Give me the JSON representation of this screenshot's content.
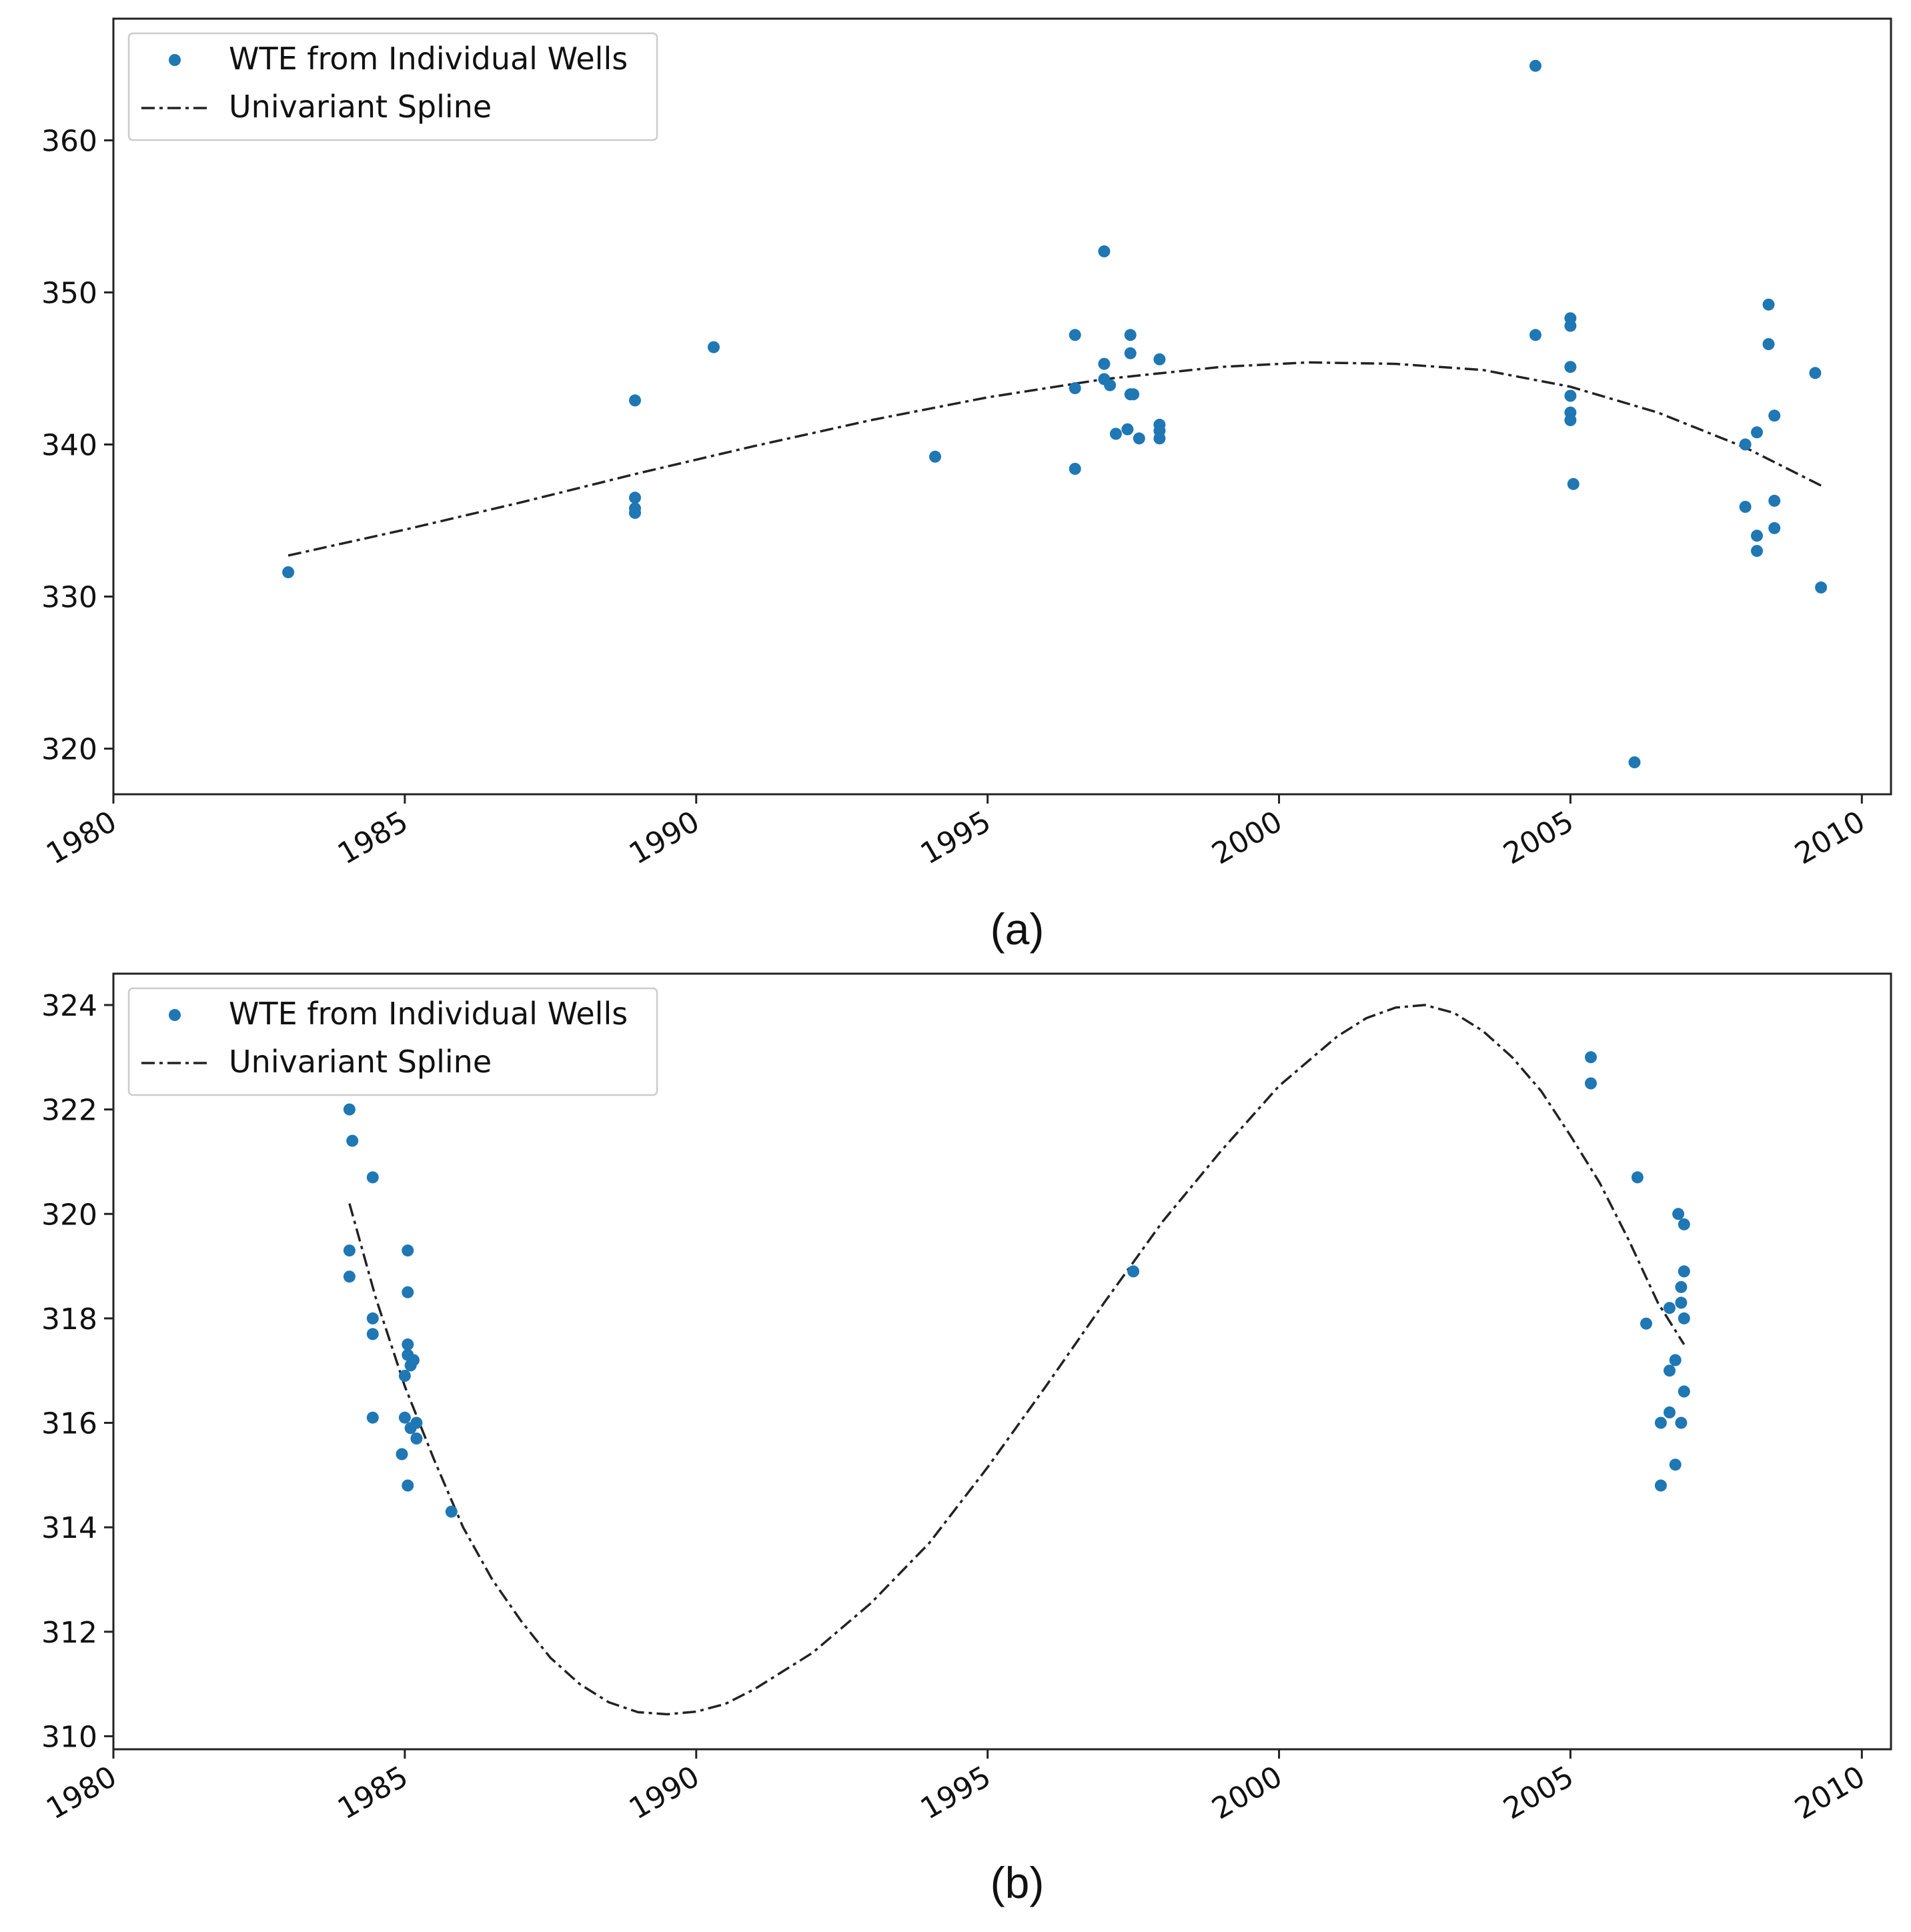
{
  "chart_data": [
    {
      "type": "scatter",
      "panel_label": "(a)",
      "xlim": [
        1980,
        2010.5
      ],
      "ylim": [
        317,
        368
      ],
      "xticks": [
        1980,
        1985,
        1990,
        1995,
        2000,
        2005,
        2010
      ],
      "yticks": [
        320,
        330,
        340,
        350,
        360
      ],
      "xtick_labels": [
        "1980",
        "1985",
        "1990",
        "1995",
        "2000",
        "2005",
        "2010"
      ],
      "ytick_labels": [
        "320",
        "330",
        "340",
        "350",
        "360"
      ],
      "legend": {
        "placement": "upper-left",
        "entries": [
          "WTE from Individual Wells",
          "Univariant Spline"
        ]
      },
      "series": [
        {
          "name": "WTE from Individual Wells",
          "kind": "scatter",
          "color": "#1f77b4",
          "points": [
            [
              1983.0,
              331.6
            ],
            [
              1988.95,
              342.9
            ],
            [
              1988.95,
              336.5
            ],
            [
              1988.95,
              335.8
            ],
            [
              1988.95,
              335.5
            ],
            [
              1990.3,
              346.4
            ],
            [
              1994.1,
              339.2
            ],
            [
              1996.5,
              347.2
            ],
            [
              1996.5,
              343.7
            ],
            [
              1996.5,
              338.4
            ],
            [
              1997.0,
              352.7
            ],
            [
              1997.0,
              345.3
            ],
            [
              1997.0,
              344.3
            ],
            [
              1997.1,
              343.9
            ],
            [
              1997.2,
              340.7
            ],
            [
              1997.4,
              341.0
            ],
            [
              1997.45,
              343.3
            ],
            [
              1997.45,
              347.2
            ],
            [
              1997.45,
              346.0
            ],
            [
              1997.5,
              343.3
            ],
            [
              1997.6,
              340.4
            ],
            [
              1997.95,
              345.6
            ],
            [
              1997.95,
              341.3
            ],
            [
              1997.95,
              340.9
            ],
            [
              1997.95,
              340.4
            ],
            [
              2004.4,
              364.9
            ],
            [
              2004.4,
              347.2
            ],
            [
              2005.0,
              348.3
            ],
            [
              2005.0,
              347.8
            ],
            [
              2005.0,
              345.1
            ],
            [
              2005.0,
              343.2
            ],
            [
              2005.0,
              342.1
            ],
            [
              2005.0,
              341.6
            ],
            [
              2005.05,
              337.4
            ],
            [
              2006.1,
              319.1
            ],
            [
              2008.0,
              340.0
            ],
            [
              2008.0,
              335.9
            ],
            [
              2008.2,
              340.8
            ],
            [
              2008.2,
              334.0
            ],
            [
              2008.2,
              333.0
            ],
            [
              2008.4,
              349.2
            ],
            [
              2008.4,
              346.6
            ],
            [
              2008.5,
              341.9
            ],
            [
              2008.5,
              336.3
            ],
            [
              2008.5,
              334.5
            ],
            [
              2009.2,
              344.7
            ],
            [
              2009.3,
              330.6
            ]
          ]
        },
        {
          "name": "Univariant Spline",
          "kind": "line",
          "color": "#222222",
          "points": [
            [
              1983.0,
              332.7
            ],
            [
              1985.0,
              334.4
            ],
            [
              1987.0,
              336.2
            ],
            [
              1989.0,
              338.1
            ],
            [
              1991.0,
              339.9
            ],
            [
              1993.0,
              341.6
            ],
            [
              1995.0,
              343.1
            ],
            [
              1997.0,
              344.3
            ],
            [
              1999.0,
              345.1
            ],
            [
              2000.5,
              345.4
            ],
            [
              2002.0,
              345.3
            ],
            [
              2003.5,
              344.9
            ],
            [
              2005.0,
              343.8
            ],
            [
              2006.5,
              342.1
            ],
            [
              2008.0,
              339.8
            ],
            [
              2009.3,
              337.3
            ]
          ]
        }
      ]
    },
    {
      "type": "scatter",
      "panel_label": "(b)",
      "xlim": [
        1980,
        2010.5
      ],
      "ylim": [
        309.75,
        324.6
      ],
      "xticks": [
        1980,
        1985,
        1990,
        1995,
        2000,
        2005,
        2010
      ],
      "yticks": [
        310,
        312,
        314,
        316,
        318,
        320,
        322,
        324
      ],
      "xtick_labels": [
        "1980",
        "1985",
        "1990",
        "1995",
        "2000",
        "2005",
        "2010"
      ],
      "ytick_labels": [
        "310",
        "312",
        "314",
        "316",
        "318",
        "320",
        "322",
        "324"
      ],
      "legend": {
        "placement": "upper-left",
        "entries": [
          "WTE from Individual Wells",
          "Univariant Spline"
        ]
      },
      "series": [
        {
          "name": "WTE from Individual Wells",
          "kind": "scatter",
          "color": "#1f77b4",
          "points": [
            [
              1984.05,
              322.0
            ],
            [
              1984.1,
              321.4
            ],
            [
              1984.05,
              319.3
            ],
            [
              1984.05,
              318.8
            ],
            [
              1984.45,
              320.7
            ],
            [
              1984.45,
              318.0
            ],
            [
              1984.45,
              317.7
            ],
            [
              1984.45,
              316.1
            ],
            [
              1985.05,
              319.3
            ],
            [
              1985.05,
              318.5
            ],
            [
              1985.05,
              317.5
            ],
            [
              1985.05,
              317.3
            ],
            [
              1985.1,
              317.1
            ],
            [
              1985.0,
              316.9
            ],
            [
              1985.15,
              317.2
            ],
            [
              1985.0,
              316.1
            ],
            [
              1985.2,
              316.0
            ],
            [
              1985.1,
              315.9
            ],
            [
              1985.2,
              315.7
            ],
            [
              1984.95,
              315.4
            ],
            [
              1985.05,
              314.8
            ],
            [
              1985.8,
              314.3
            ],
            [
              1997.5,
              318.9
            ],
            [
              2005.35,
              323.0
            ],
            [
              2005.35,
              322.5
            ],
            [
              2006.15,
              320.7
            ],
            [
              2006.3,
              317.9
            ],
            [
              2006.55,
              316.0
            ],
            [
              2006.55,
              314.8
            ],
            [
              2006.7,
              318.2
            ],
            [
              2006.7,
              317.0
            ],
            [
              2006.7,
              316.2
            ],
            [
              2006.8,
              317.2
            ],
            [
              2006.8,
              315.2
            ],
            [
              2006.85,
              320.0
            ],
            [
              2006.9,
              318.6
            ],
            [
              2006.9,
              318.3
            ],
            [
              2006.9,
              316.0
            ],
            [
              2006.95,
              319.8
            ],
            [
              2006.95,
              318.9
            ],
            [
              2006.95,
              318.0
            ],
            [
              2006.95,
              316.6
            ]
          ]
        },
        {
          "name": "Univariant Spline",
          "kind": "line",
          "color": "#222222",
          "points": [
            [
              1984.05,
              320.2
            ],
            [
              1984.5,
              318.4
            ],
            [
              1985.0,
              316.7
            ],
            [
              1985.5,
              315.3
            ],
            [
              1986.0,
              314.0
            ],
            [
              1986.5,
              313.0
            ],
            [
              1987.0,
              312.2
            ],
            [
              1987.5,
              311.5
            ],
            [
              1988.0,
              311.0
            ],
            [
              1988.5,
              310.65
            ],
            [
              1989.0,
              310.46
            ],
            [
              1989.5,
              310.42
            ],
            [
              1990.0,
              310.47
            ],
            [
              1990.5,
              310.62
            ],
            [
              1991.0,
              310.9
            ],
            [
              1992.0,
              311.6
            ],
            [
              1993.0,
              312.55
            ],
            [
              1994.0,
              313.7
            ],
            [
              1995.0,
              315.15
            ],
            [
              1996.0,
              316.7
            ],
            [
              1997.0,
              318.3
            ],
            [
              1998.0,
              319.85
            ],
            [
              1999.0,
              321.2
            ],
            [
              2000.0,
              322.45
            ],
            [
              2001.0,
              323.4
            ],
            [
              2001.5,
              323.75
            ],
            [
              2002.0,
              323.95
            ],
            [
              2002.5,
              324.0
            ],
            [
              2003.0,
              323.85
            ],
            [
              2003.5,
              323.5
            ],
            [
              2004.0,
              323.0
            ],
            [
              2004.5,
              322.35
            ],
            [
              2005.0,
              321.5
            ],
            [
              2005.5,
              320.6
            ],
            [
              2006.0,
              319.5
            ],
            [
              2006.5,
              318.3
            ],
            [
              2006.95,
              317.5
            ]
          ]
        }
      ]
    }
  ]
}
